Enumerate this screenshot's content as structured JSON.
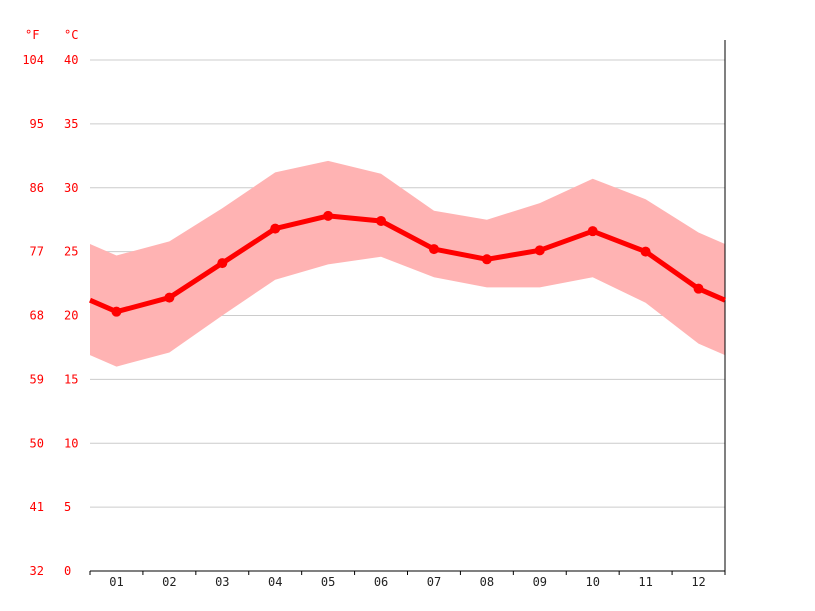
{
  "chart_data": {
    "type": "line",
    "unit_labels": {
      "fahrenheit": "°F",
      "celsius": "°C"
    },
    "categories": [
      "01",
      "02",
      "03",
      "04",
      "05",
      "06",
      "07",
      "08",
      "09",
      "10",
      "11",
      "12"
    ],
    "y_ticks_celsius": [
      "0",
      "5",
      "10",
      "15",
      "20",
      "25",
      "30",
      "35",
      "40"
    ],
    "y_ticks_fahrenheit": [
      "32",
      "41",
      "50",
      "59",
      "68",
      "77",
      "86",
      "95",
      "104"
    ],
    "ylim": [
      0,
      40
    ],
    "series": [
      {
        "values": [
          20.3,
          21.4,
          24.1,
          26.8,
          27.8,
          27.4,
          25.2,
          24.4,
          25.1,
          26.6,
          25.0,
          22.1
        ]
      }
    ],
    "band": {
      "low": [
        16.0,
        17.1,
        20.0,
        22.8,
        24.0,
        24.6,
        23.0,
        22.2,
        22.2,
        23.0,
        21.0,
        17.8
      ],
      "high": [
        24.7,
        25.8,
        28.4,
        31.2,
        32.1,
        31.1,
        28.2,
        27.5,
        28.8,
        30.7,
        29.1,
        26.5
      ]
    },
    "colors": {
      "line": "#ff0000",
      "band": "#ffb3b3",
      "grid": "#cccccc",
      "axis": "#000000",
      "label": "#ff0000"
    },
    "grid": true
  }
}
